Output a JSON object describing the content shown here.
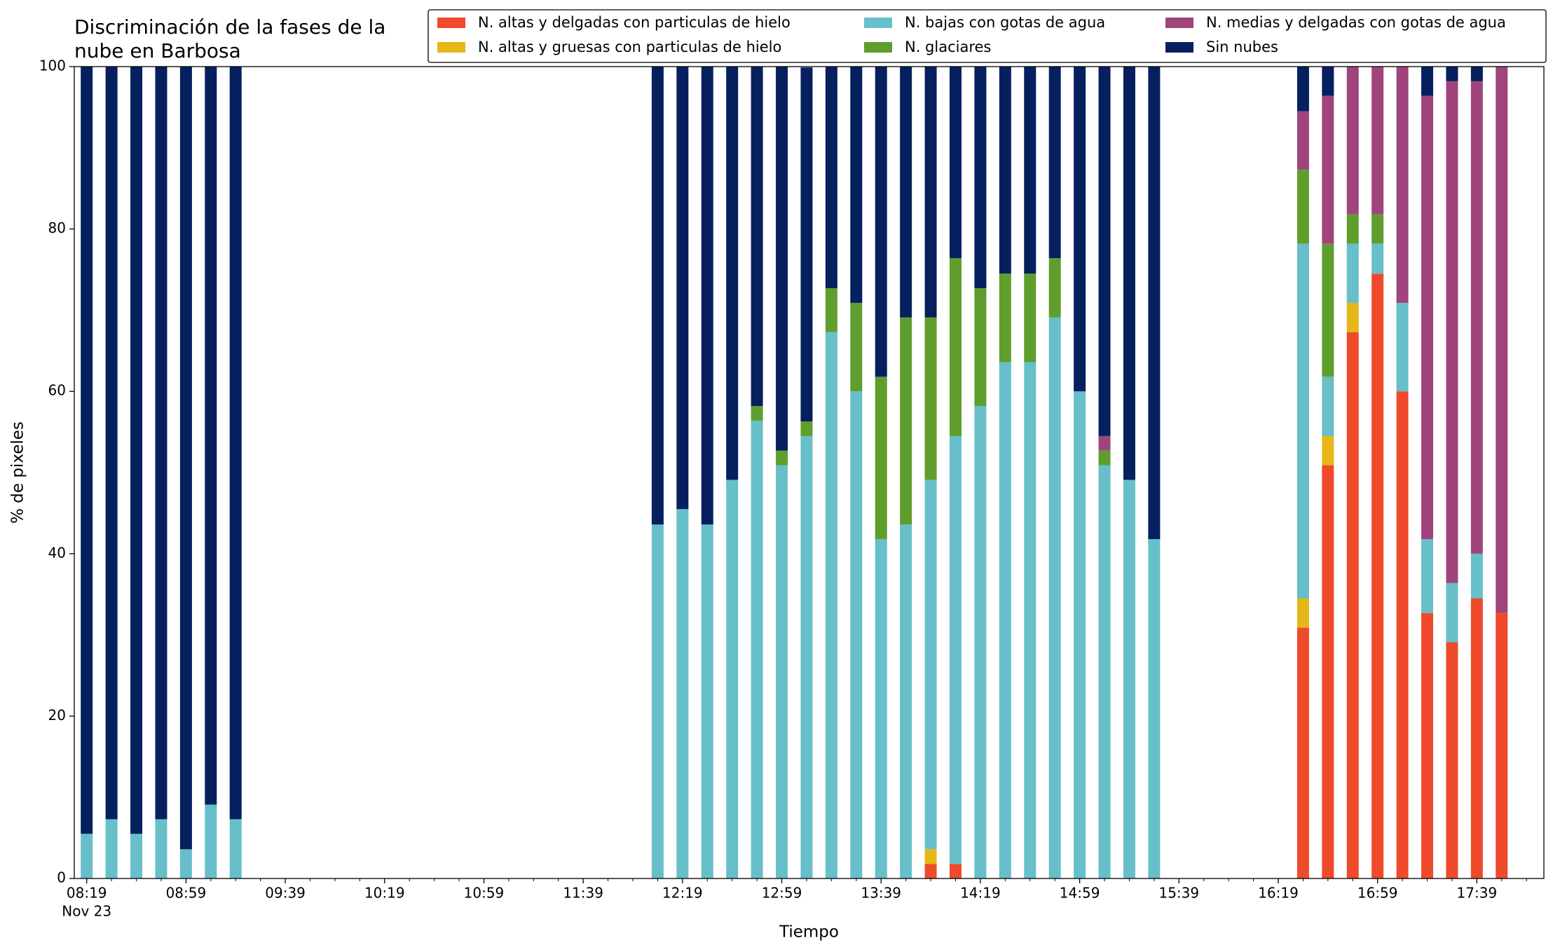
{
  "chart_data": {
    "type": "stacked_bar",
    "title": "Discriminación de la fases de la\nnube en Barbosa",
    "x_label": "Tiempo",
    "y_label": "% de pixeles",
    "x_date_label": "Nov 23",
    "x": [
      "08:19",
      "08:29",
      "08:39",
      "08:49",
      "08:59",
      "09:09",
      "09:19",
      "12:09",
      "12:19",
      "12:29",
      "12:39",
      "12:49",
      "12:59",
      "13:09",
      "13:19",
      "13:29",
      "13:39",
      "13:49",
      "13:59",
      "14:09",
      "14:19",
      "14:29",
      "14:39",
      "14:49",
      "14:59",
      "15:09",
      "15:19",
      "15:29",
      "16:29",
      "16:39",
      "16:49",
      "16:59",
      "17:09",
      "17:19",
      "17:29",
      "17:39",
      "17:49"
    ],
    "series": [
      {
        "name": "N. altas y delgadas con particulas de hielo",
        "color": "#ee4a2b",
        "values": [
          0,
          0,
          0,
          0,
          0,
          0,
          0,
          0,
          0,
          0,
          0,
          0,
          0,
          0,
          0,
          0,
          0,
          0,
          1.8,
          1.8,
          0,
          0,
          0,
          0,
          0,
          0,
          0,
          0,
          30.9,
          50.9,
          67.3,
          74.5,
          60,
          32.7,
          29.1,
          34.5,
          32.7
        ]
      },
      {
        "name": "N. altas y gruesas con particulas de hielo",
        "color": "#e6b718",
        "values": [
          0,
          0,
          0,
          0,
          0,
          0,
          0,
          0,
          0,
          0,
          0,
          0,
          0,
          0,
          0,
          0,
          0,
          0,
          1.8,
          0,
          0,
          0,
          0,
          0,
          0,
          0,
          0,
          0,
          3.6,
          3.6,
          3.6,
          0,
          0,
          0,
          0,
          0,
          0
        ]
      },
      {
        "name": "N. bajas con gotas de agua",
        "color": "#67bfca",
        "values": [
          5.5,
          7.3,
          5.5,
          7.3,
          3.6,
          9.1,
          7.3,
          43.6,
          45.5,
          43.6,
          49.1,
          56.4,
          50.9,
          54.5,
          67.3,
          60,
          41.8,
          43.6,
          45.5,
          52.7,
          58.2,
          63.6,
          63.6,
          69.1,
          60,
          50.9,
          49.1,
          41.8,
          43.7,
          7.3,
          7.3,
          3.7,
          10.9,
          9.1,
          7.3,
          5.5,
          0
        ]
      },
      {
        "name": "N. glaciares",
        "color": "#5f9e2d",
        "values": [
          0,
          0,
          0,
          0,
          0,
          0,
          0,
          0,
          0,
          0,
          0,
          1.8,
          1.8,
          1.8,
          5.4,
          10.9,
          20,
          25.5,
          20,
          21.9,
          14.5,
          10.9,
          10.9,
          7.3,
          0,
          1.8,
          0,
          0,
          9.1,
          16.4,
          3.6,
          3.6,
          0,
          0,
          0,
          0,
          0
        ]
      },
      {
        "name": "N. medias y delgadas con gotas de agua",
        "color": "#a0457c",
        "values": [
          0,
          0,
          0,
          0,
          0,
          0,
          0,
          0,
          0,
          0,
          0,
          0,
          0,
          0,
          0,
          0,
          0,
          0,
          0,
          0,
          0,
          0,
          0,
          0,
          0,
          1.8,
          0,
          0,
          7.2,
          18.2,
          18.2,
          18.2,
          29.1,
          54.6,
          61.8,
          58.2,
          67.3
        ]
      },
      {
        "name": "Sin nubes",
        "color": "#061f5e",
        "values": [
          94.5,
          92.7,
          94.5,
          92.7,
          96.4,
          90.9,
          92.7,
          56.4,
          54.5,
          56.4,
          50.9,
          41.8,
          47.3,
          43.6,
          27.3,
          29.1,
          38.2,
          30.9,
          30.9,
          23.6,
          27.3,
          25.5,
          25.5,
          23.6,
          40,
          45.5,
          50.9,
          58.2,
          5.5,
          3.6,
          0,
          0,
          0,
          3.6,
          1.8,
          1.8,
          0
        ]
      }
    ],
    "xlim": [
      "08:14",
      "18:06"
    ],
    "xticks": [
      "08:19",
      "08:59",
      "09:39",
      "10:19",
      "10:59",
      "11:39",
      "12:19",
      "12:59",
      "13:39",
      "14:19",
      "14:59",
      "15:39",
      "16:19",
      "16:59",
      "17:39"
    ],
    "xminorticks": [
      "08:29",
      "08:39",
      "08:49",
      "09:09",
      "09:19",
      "09:29",
      "09:49",
      "09:59",
      "10:09",
      "10:29",
      "10:39",
      "10:49",
      "11:09",
      "11:19",
      "11:29",
      "11:49",
      "11:59",
      "12:09",
      "12:29",
      "12:39",
      "12:49",
      "13:09",
      "13:19",
      "13:29",
      "13:49",
      "13:59",
      "14:09",
      "14:29",
      "14:39",
      "14:49",
      "15:09",
      "15:19",
      "15:29",
      "15:49",
      "15:59",
      "16:09",
      "16:29",
      "16:39",
      "16:49",
      "17:09",
      "17:19",
      "17:29",
      "17:49",
      "17:59"
    ],
    "ylim": [
      0,
      100
    ],
    "yticks": [
      0,
      20,
      40,
      60,
      80,
      100
    ],
    "legend": "upper right"
  }
}
